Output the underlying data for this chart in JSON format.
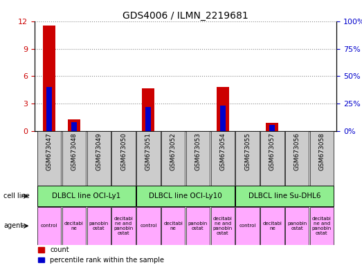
{
  "title": "GDS4006 / ILMN_2219681",
  "samples": [
    "GSM673047",
    "GSM673048",
    "GSM673049",
    "GSM673050",
    "GSM673051",
    "GSM673052",
    "GSM673053",
    "GSM673054",
    "GSM673055",
    "GSM673057",
    "GSM673056",
    "GSM673058"
  ],
  "red_values": [
    11.5,
    1.3,
    0.0,
    0.0,
    4.7,
    0.0,
    0.0,
    4.8,
    0.0,
    0.9,
    0.0,
    0.0
  ],
  "blue_values_pct": [
    40.0,
    8.0,
    0.0,
    0.0,
    22.0,
    0.0,
    0.0,
    23.0,
    0.0,
    5.5,
    0.0,
    0.0
  ],
  "ylim_left": [
    0,
    12
  ],
  "ylim_right": [
    0,
    100
  ],
  "yticks_left": [
    0,
    3,
    6,
    9,
    12
  ],
  "yticks_right": [
    0,
    25,
    50,
    75,
    100
  ],
  "cell_line_groups": [
    {
      "label": "DLBCL line OCI-Ly1",
      "start": 0,
      "end": 3,
      "color": "#90EE90"
    },
    {
      "label": "DLBCL line OCI-Ly10",
      "start": 4,
      "end": 7,
      "color": "#90EE90"
    },
    {
      "label": "DLBCL line Su-DHL6",
      "start": 8,
      "end": 11,
      "color": "#90EE90"
    }
  ],
  "agent_labels": [
    "control",
    "decitabi\nne",
    "panobin\nostat",
    "decitabi\nne and\npanobin\nostat",
    "control",
    "decitabi\nne",
    "panobin\nostat",
    "decitabi\nne and\npanobin\nostat",
    "control",
    "decitabi\nne",
    "panobin\nostat",
    "decitabi\nne and\npanobin\nostat"
  ],
  "agent_color": "#ffaaff",
  "bar_width": 0.5,
  "red_color": "#cc0000",
  "blue_color": "#0000cc",
  "grid_color": "#888888",
  "tick_bg_color": "#cccccc",
  "right_axis_color": "#0000cc",
  "left_axis_color": "#cc0000"
}
